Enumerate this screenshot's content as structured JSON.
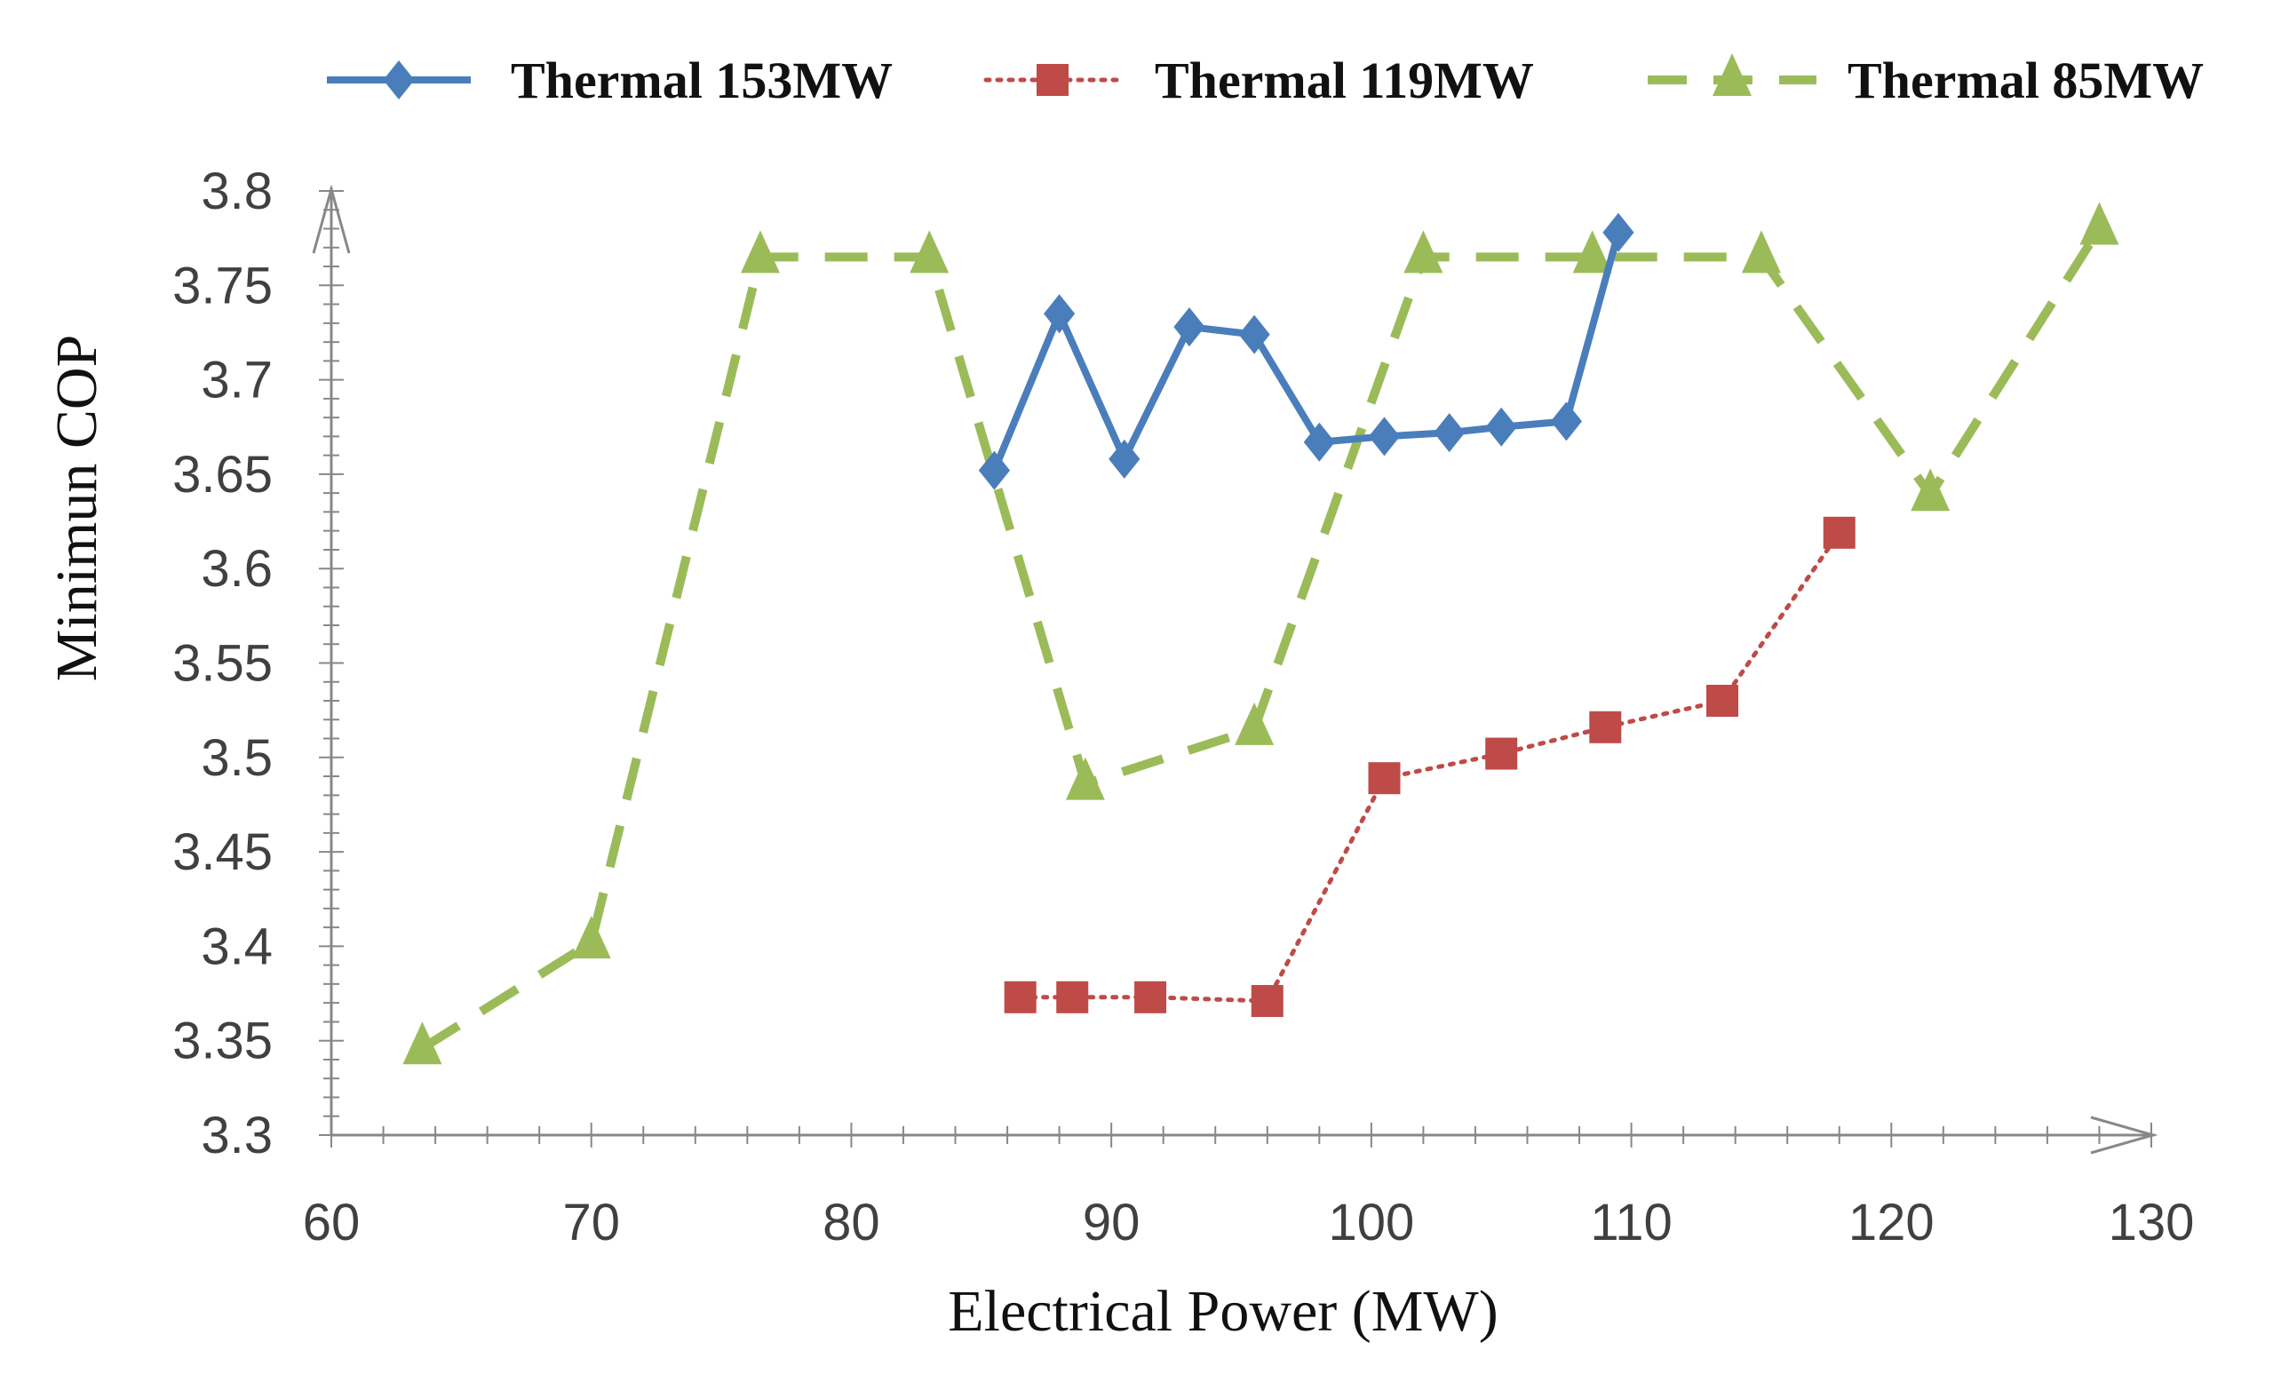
{
  "chart_data": {
    "type": "line",
    "title": "",
    "xlabel": "Electrical Power (MW)",
    "ylabel": "Minimun COP",
    "xlim": [
      60,
      130
    ],
    "ylim": [
      3.3,
      3.8
    ],
    "xticks": [
      60,
      70,
      80,
      90,
      100,
      110,
      120,
      130
    ],
    "xtick_labels": [
      "60",
      "70",
      "80",
      "90",
      "100",
      "110",
      "120",
      "130"
    ],
    "yticks": [
      3.3,
      3.35,
      3.4,
      3.45,
      3.5,
      3.55,
      3.6,
      3.65,
      3.7,
      3.75,
      3.8
    ],
    "ytick_labels": [
      "3.3",
      "3.35",
      "3.4",
      "3.45",
      "3.5",
      "3.55",
      "3.6",
      "3.65",
      "3.7",
      "3.75",
      "3.8"
    ],
    "grid": false,
    "legend_position": "top",
    "series": [
      {
        "name": "Thermal 153MW",
        "color": "#4a7ebb",
        "line_style": "solid",
        "marker": "diamond",
        "x": [
          85.5,
          88.0,
          90.5,
          93.0,
          95.5,
          98.0,
          100.5,
          103.0,
          105.0,
          107.5,
          109.5
        ],
        "y": [
          3.652,
          3.735,
          3.658,
          3.728,
          3.724,
          3.667,
          3.67,
          3.672,
          3.675,
          3.678,
          3.778
        ]
      },
      {
        "name": "Thermal 119MW",
        "color": "#be4b48",
        "line_style": "dotted",
        "marker": "square",
        "x": [
          86.5,
          88.5,
          91.5,
          96.0,
          100.5,
          105.0,
          109.0,
          113.5,
          118.0
        ],
        "y": [
          3.373,
          3.373,
          3.373,
          3.371,
          3.489,
          3.502,
          3.516,
          3.53,
          3.619
        ]
      },
      {
        "name": "Thermal 85MW",
        "color": "#9bbb59",
        "line_style": "dashed",
        "marker": "triangle",
        "x": [
          63.5,
          70.0,
          76.5,
          83.0,
          89.0,
          95.5,
          102.0,
          108.5,
          115.0,
          121.5,
          128.0
        ],
        "y": [
          3.346,
          3.402,
          3.765,
          3.765,
          3.486,
          3.515,
          3.765,
          3.765,
          3.765,
          3.639,
          3.78
        ]
      }
    ]
  }
}
